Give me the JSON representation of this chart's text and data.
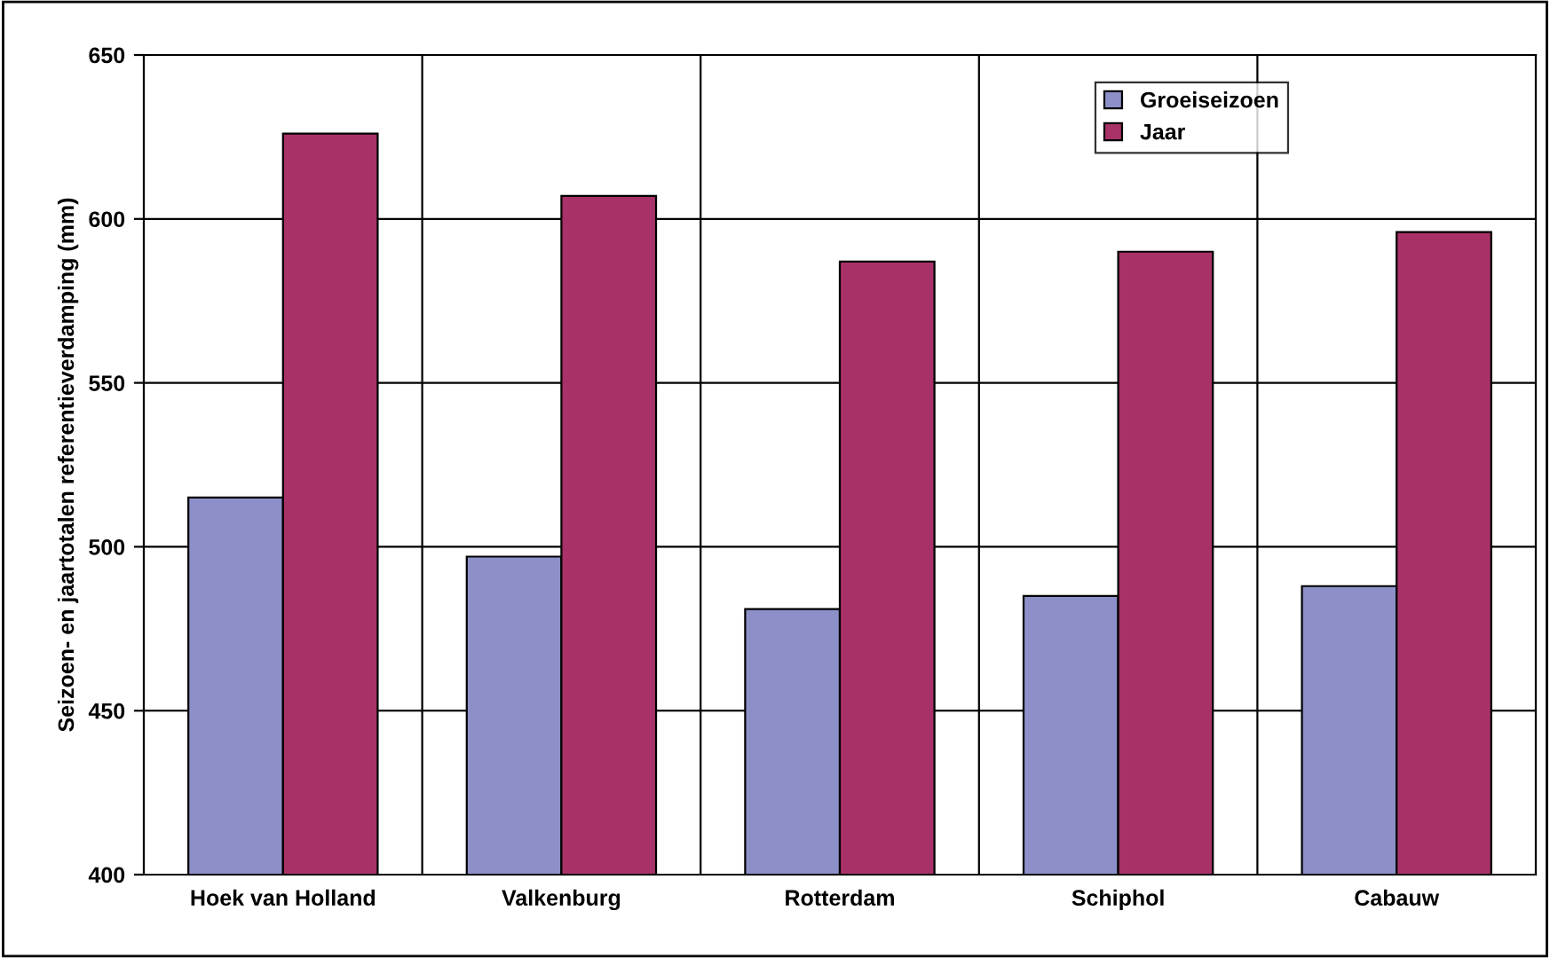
{
  "chart_data": {
    "type": "bar",
    "ylabel": "Seizoen- en jaartotalen referentieverdamping (mm)",
    "categories": [
      "Hoek van Holland",
      "Valkenburg",
      "Rotterdam",
      "Schiphol",
      "Cabauw"
    ],
    "series": [
      {
        "name": "Groeiseizoen",
        "color": "#8d90c8",
        "values": [
          515,
          497,
          481,
          485,
          488
        ]
      },
      {
        "name": "Jaar",
        "color": "#a83268",
        "values": [
          626,
          607,
          587,
          590,
          596
        ]
      }
    ],
    "ylim": [
      400,
      650
    ],
    "yticks": [
      400,
      450,
      500,
      550,
      600,
      650
    ],
    "grid": true,
    "legend": "top right"
  }
}
